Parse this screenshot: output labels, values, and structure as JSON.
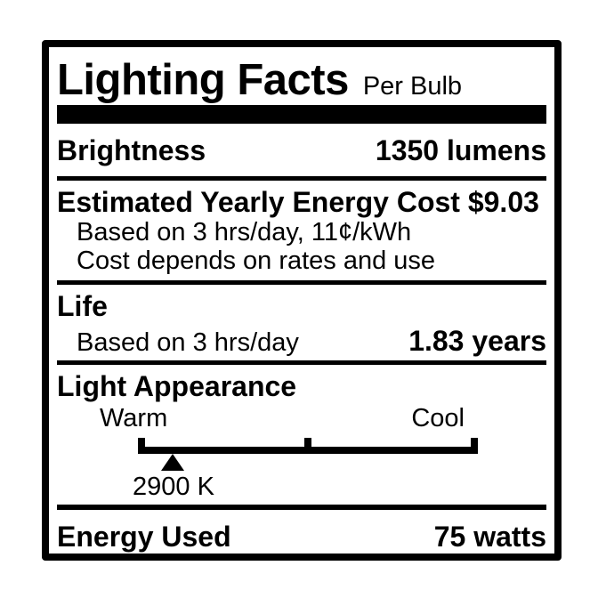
{
  "label": {
    "title": "Lighting Facts",
    "subtitle": "Per Bulb",
    "brightness": {
      "name": "Brightness",
      "value": "1350 lumens"
    },
    "energy_cost": {
      "heading": "Estimated Yearly Energy Cost $9.03",
      "note1": "Based on 3 hrs/day, 11¢/kWh",
      "note2": "Cost depends on rates and use"
    },
    "life": {
      "heading": "Life",
      "basis": "Based on 3 hrs/day",
      "value": "1.83 years"
    },
    "light_appearance": {
      "heading": "Light Appearance",
      "warm": "Warm",
      "cool": "Cool",
      "temperature": "2900 K",
      "marker_position_pct": 10.2
    },
    "energy_used": {
      "name": "Energy Used",
      "value": "75 watts"
    }
  },
  "colors": {
    "ink": "#000000",
    "background": "#ffffff"
  }
}
